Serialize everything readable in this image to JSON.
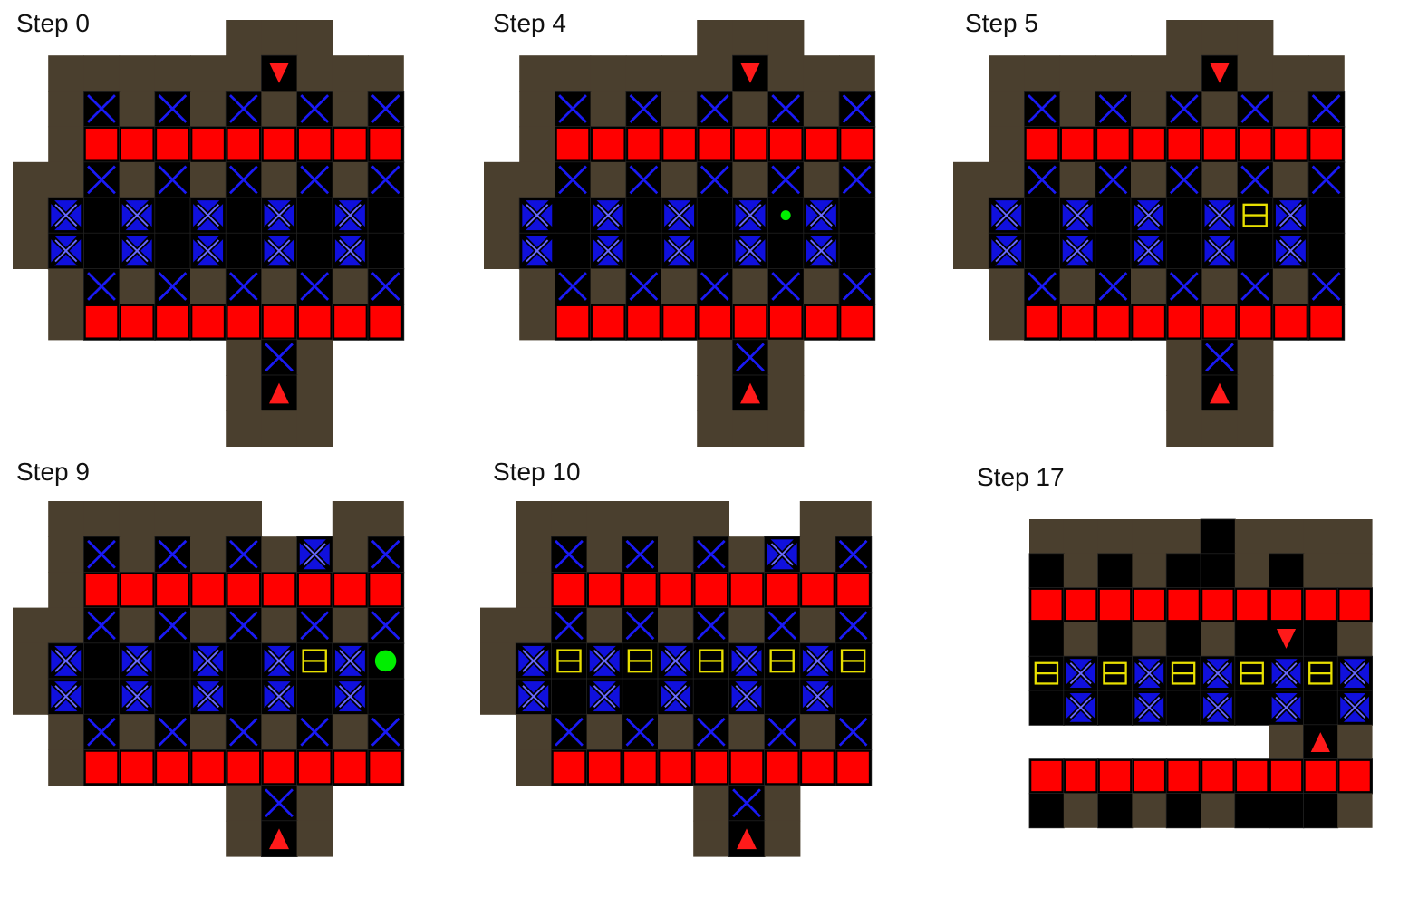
{
  "colors": {
    "wall": "#4a3f2e",
    "wall_edge": "#2c2619",
    "floor": "#000000",
    "grid": "#222222",
    "target_cross": "#1a1af5",
    "block_face": "#1010dd",
    "red_box": "#ff0000",
    "box_outline": "#202020",
    "arrow": "#ff1a1a",
    "goal_dot": "#00ee00",
    "yellow_gate": "#e8e000"
  },
  "legend_icons": {
    "X": "blue-x-target-icon",
    "B": "blue-x-block-icon",
    "R": "red-box-icon",
    "D": "red-arrow-down-icon",
    "U": "red-arrow-up-icon",
    "Y": "yellow-gate-icon",
    "g": "small-green-dot-icon",
    "G": "large-green-dot-icon",
    "W": "wall-tile",
    "b": "black-floor-tile",
    "blank": "white-gap"
  },
  "panels": [
    {
      "id": "step-0",
      "label": "Step 0",
      "grid": [
        "......WWW..",
        ".WWWWWWDWWW",
        ".WXWXWXWXWX",
        ".WRRRRRRRRR",
        "WWXWXWXWXWX",
        "WBbBbBbBbBb",
        "WBbBbBbBbBb",
        ".WXWXWXWXWX",
        ".WRRRRRRRRR",
        "......WXW..",
        "......WUW..",
        "......WWW.."
      ]
    },
    {
      "id": "step-4",
      "label": "Step 4",
      "grid": [
        "......WWW..",
        ".WWWWWWDWWW",
        ".WXWXWXWXWX",
        ".WRRRRRRRRR",
        "WWXWXWXWXWX",
        "WBbBbBbBgBb",
        "WBbBbBbBbBb",
        ".WXWXWXWXWX",
        ".WRRRRRRRRR",
        "......WXW..",
        "......WUW..",
        "......WWW.."
      ]
    },
    {
      "id": "step-5",
      "label": "Step 5",
      "grid": [
        "......WWW..",
        ".WWWWWWDWWW",
        ".WXWXWXWXWX",
        ".WRRRRRRRRR",
        "WWXWXWXWXWX",
        "WBbBbBbBYBb",
        "WBbBbBbBbBb",
        ".WXWXWXWXWX",
        ".WRRRRRRRRR",
        "......WXW..",
        "......WUW..",
        "......WWW.."
      ]
    },
    {
      "id": "step-9",
      "label": "Step 9",
      "grid": [
        ".WWWWWW..WW",
        ".WXWXWXWBWX",
        ".WRRRRRRRRR",
        "WWXWXWXWXWX",
        "WBbBbBbBYBG",
        "WBbBbBbBbBb",
        ".WXWXWXWXWX",
        ".WRRRRRRRRR",
        "......WXW..",
        "......WUW.."
      ]
    },
    {
      "id": "step-10",
      "label": "Step 10",
      "grid": [
        ".WWWWWW..WW",
        ".WXWXWXWBWX",
        ".WRRRRRRRRR",
        "WWXWXWXWXWX",
        "WBYBYBYBYBY",
        "WBbBbBbBbBb",
        ".WXWXWXWXWX",
        ".WRRRRRRRRR",
        "......WXW..",
        "......WUW.."
      ]
    },
    {
      "id": "step-17",
      "label": "Step 17",
      "grid": [
        "WWWWWbWWWW",
        "bWbWbbWbWW",
        "RRRRRRRRRR",
        "bWbWbWbDbW",
        "YBYBYBYBYB",
        "bBbBbBbBbB",
        ".......WUW",
        "RRRRRRRRRR",
        "bWbWbWbbbW"
      ]
    }
  ]
}
